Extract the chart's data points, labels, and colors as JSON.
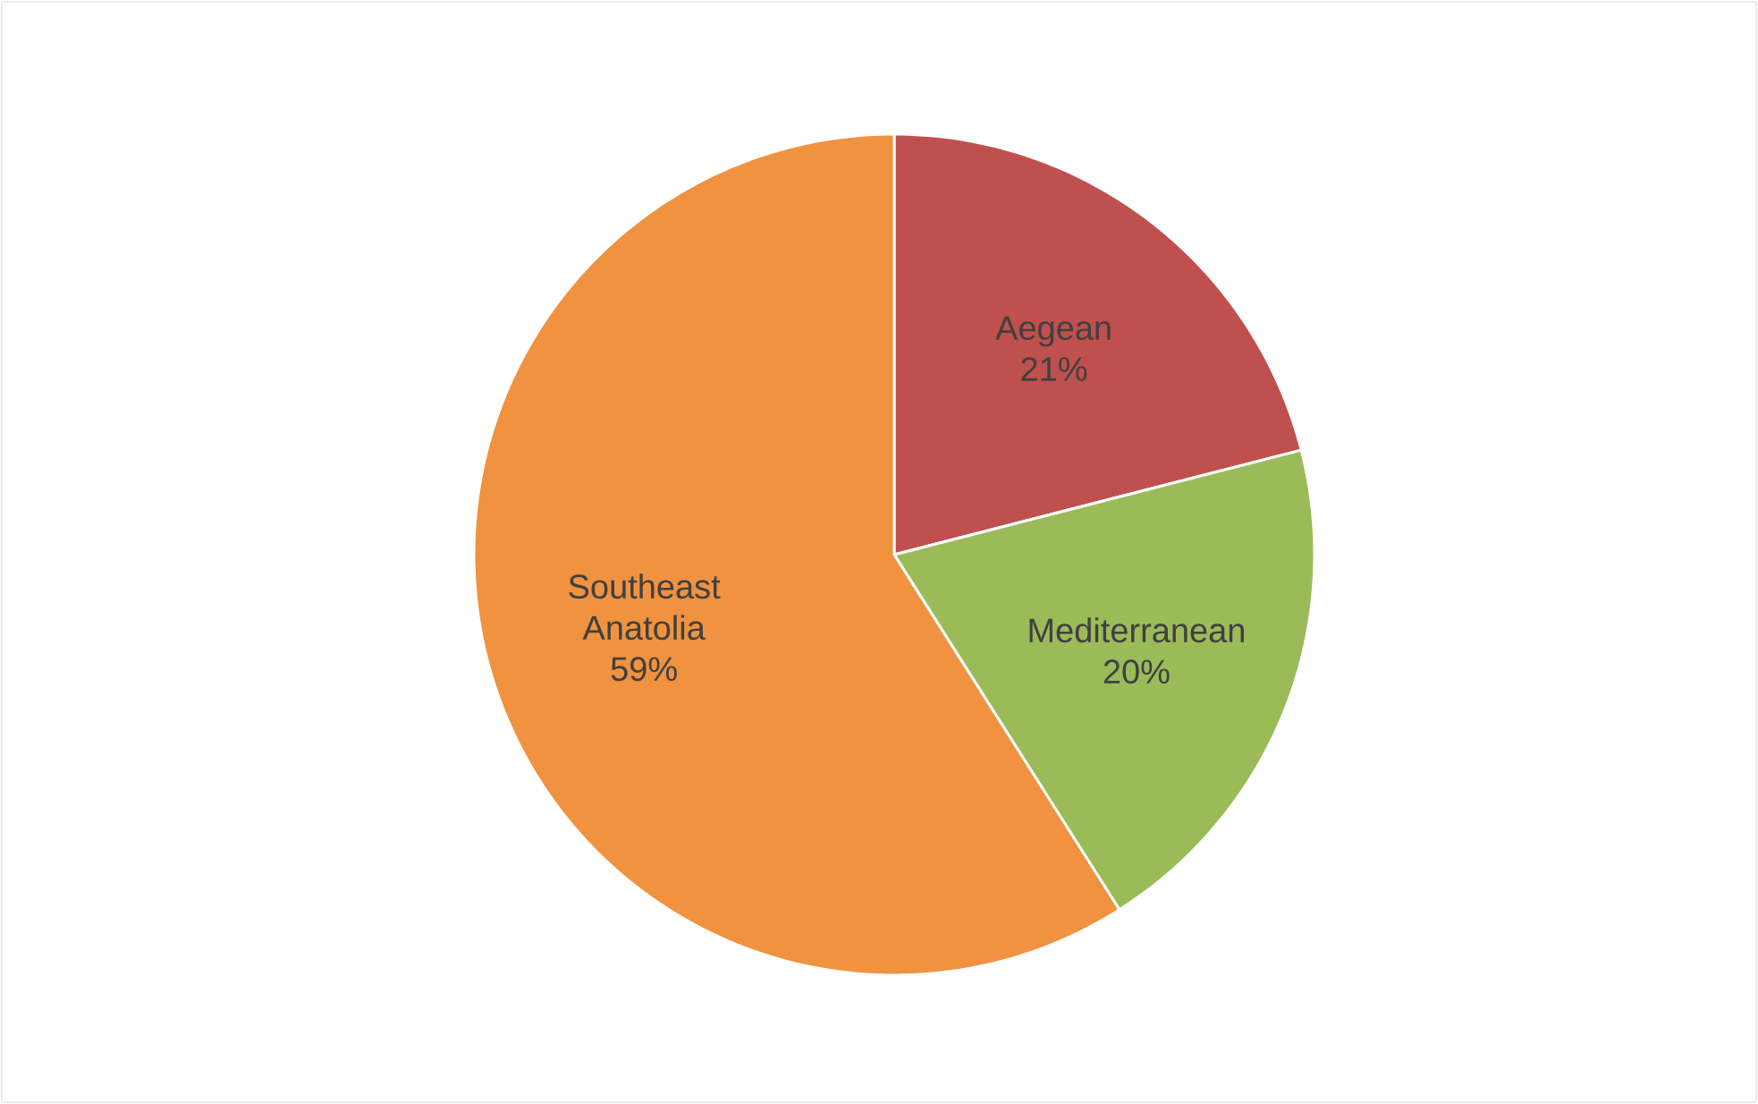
{
  "chart_data": {
    "type": "pie",
    "categories": [
      "Aegean",
      "Mediterranean",
      "Southeast Anatolia"
    ],
    "values": [
      21,
      20,
      59
    ],
    "value_labels": [
      "21%",
      "20%",
      "59%"
    ],
    "colors": [
      "#c0504d",
      "#9bbb59",
      "#f0923f"
    ]
  }
}
